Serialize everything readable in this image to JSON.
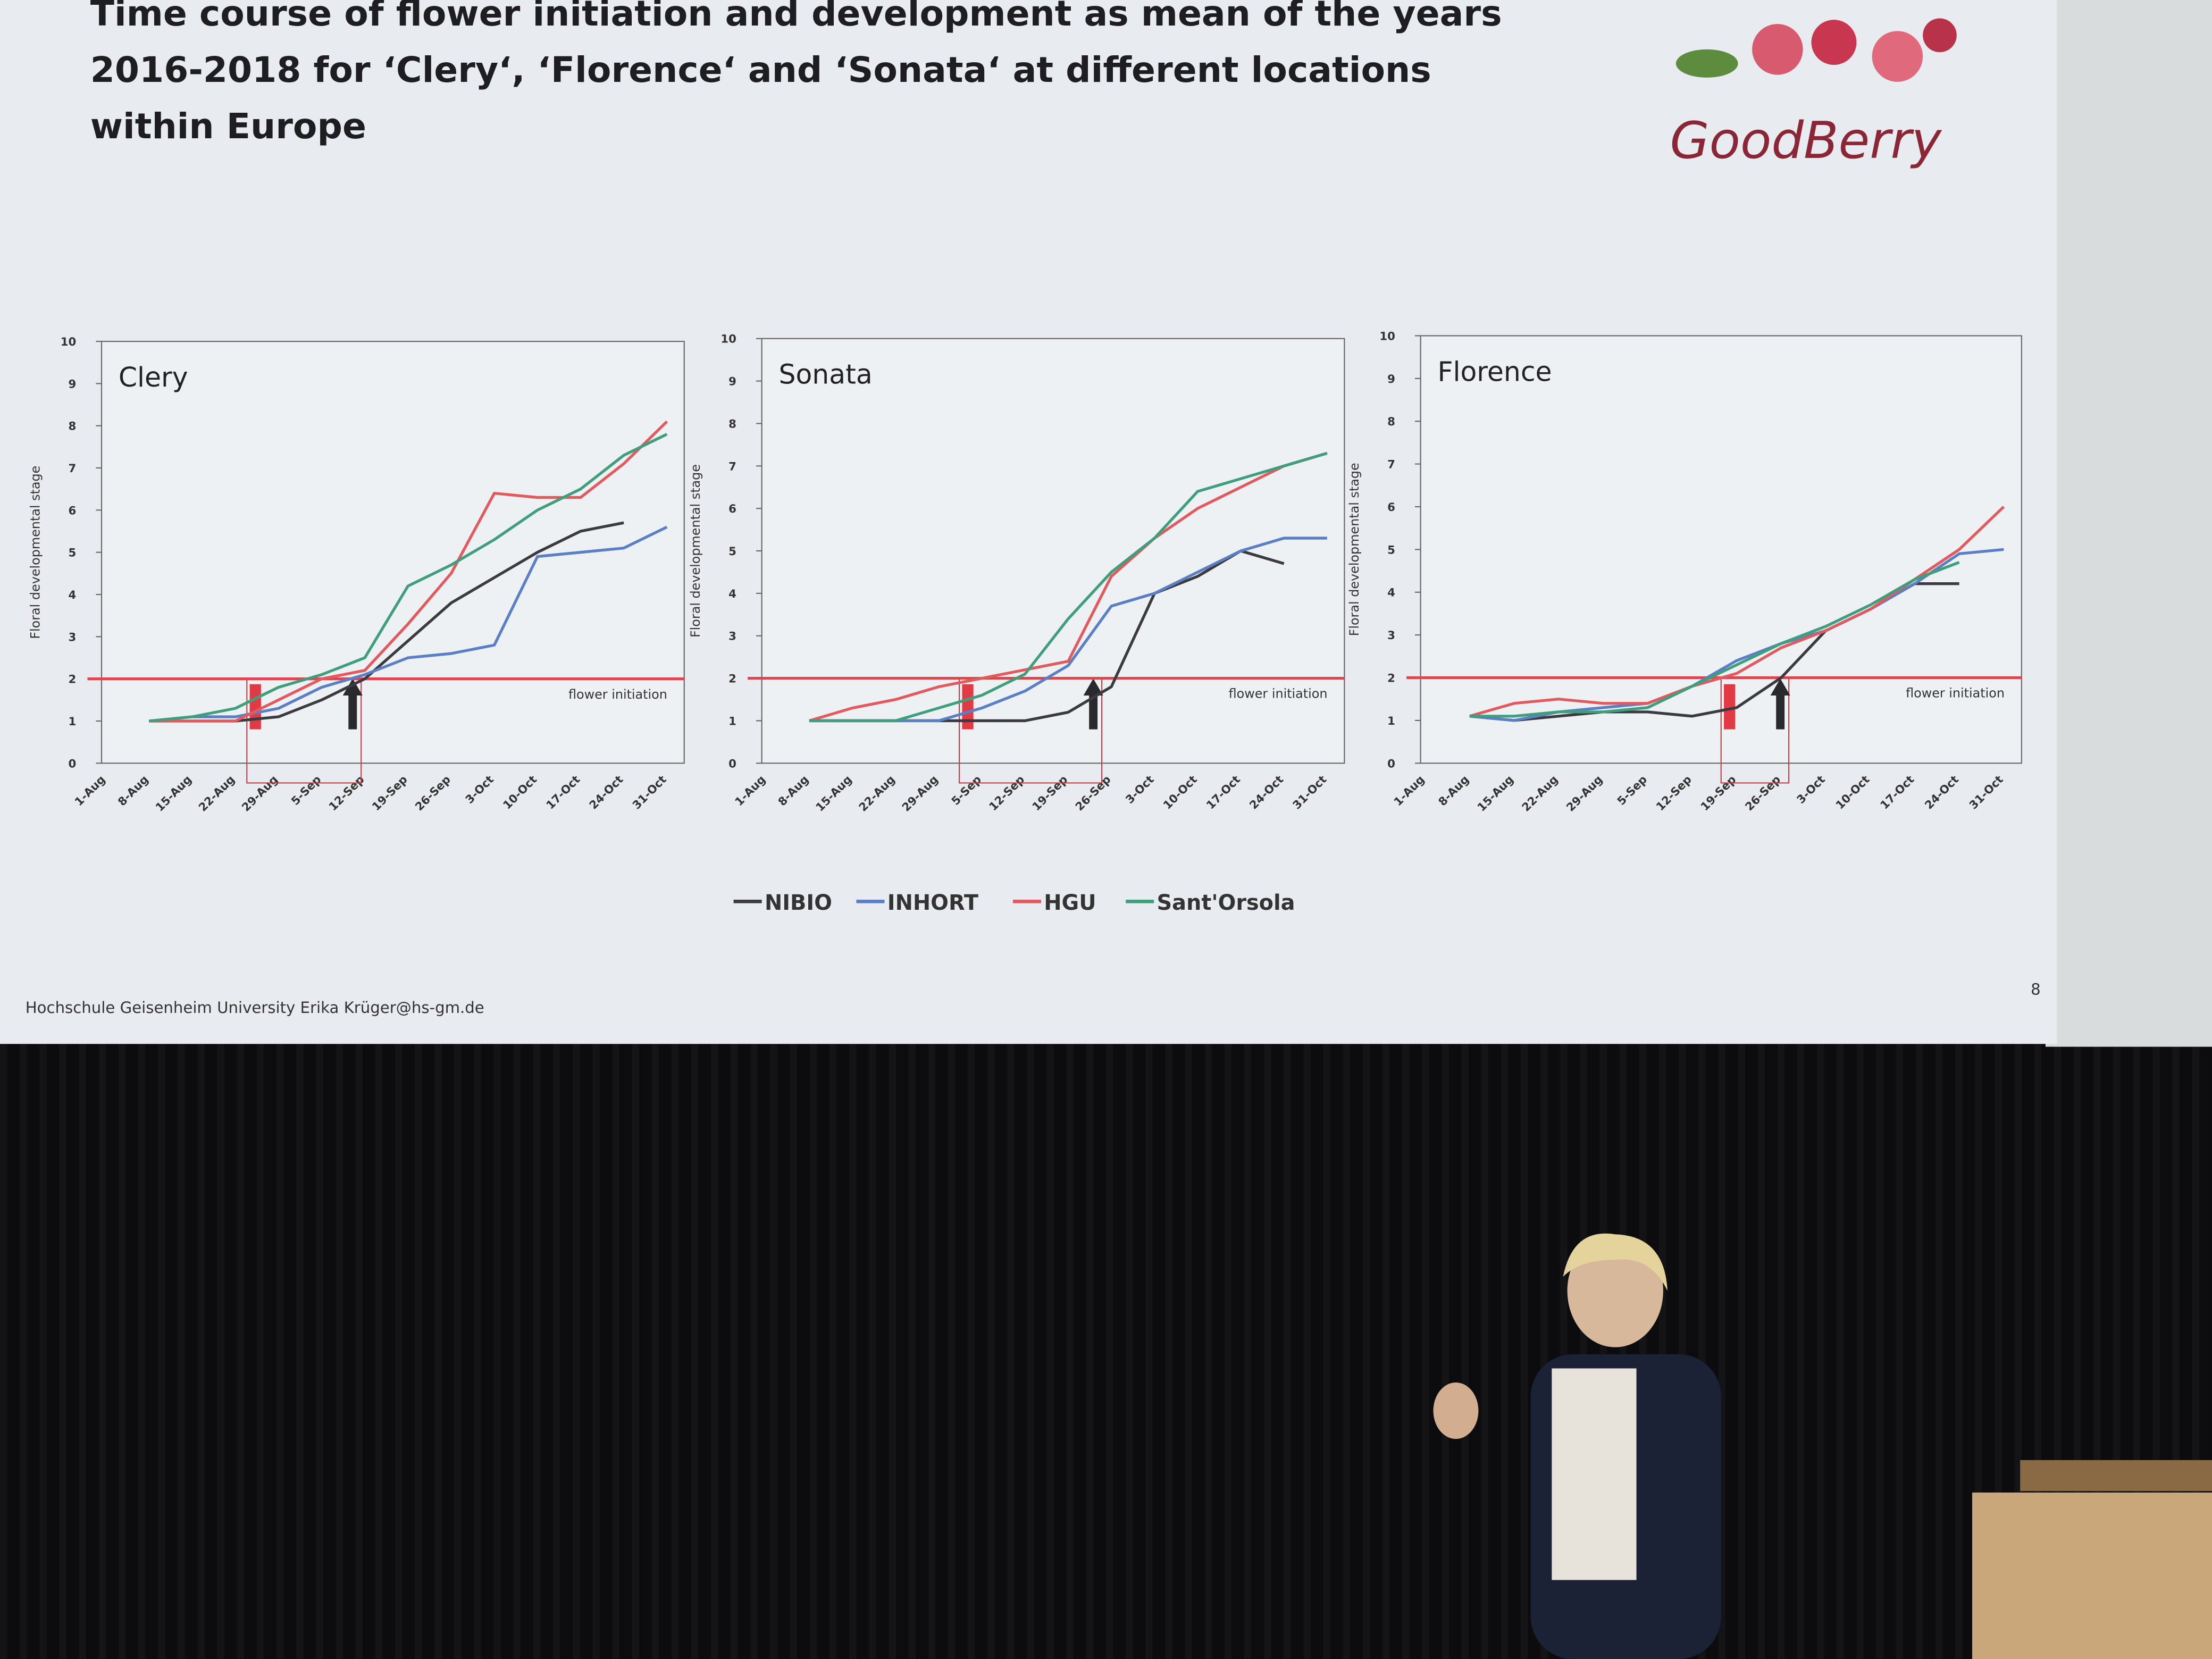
{
  "slide": {
    "title": [
      "Time course of flower initiation and development as mean of the years",
      "2016-2018 for ‘Clery‘, ‘Florence‘ and ‘Sonata‘ at different locations",
      "within Europe"
    ],
    "logo": "GoodBerry",
    "footer": "Hochschule Geisenheim University Erika Krüger@hs-gm.de",
    "page_number": "8"
  },
  "chart_data": [
    {
      "type": "line",
      "title": "Clery",
      "y_label": "Floral developmental stage",
      "categories": [
        "1-Aug",
        "8-Aug",
        "15-Aug",
        "22-Aug",
        "29-Aug",
        "5-Sep",
        "12-Sep",
        "19-Sep",
        "26-Sep",
        "3-Oct",
        "10-Oct",
        "17-Oct",
        "24-Oct",
        "31-Oct"
      ],
      "ylim": [
        0,
        10
      ],
      "yticks": [
        0,
        1,
        2,
        3,
        4,
        5,
        6,
        7,
        8,
        9,
        10
      ],
      "grid": false,
      "reference_line": {
        "value": 2,
        "label": "flower initiation",
        "color": "#e0444c"
      },
      "series": [
        {
          "name": "NIBIO",
          "color": "#3a3a40",
          "values": [
            null,
            1,
            1,
            1,
            1.1,
            1.5,
            2,
            2.9,
            3.8,
            4.4,
            5,
            5.5,
            5.7,
            null
          ]
        },
        {
          "name": "INHORT",
          "color": "#5a7fc4",
          "values": [
            null,
            1,
            1.1,
            1.1,
            1.3,
            1.8,
            2.1,
            2.5,
            2.6,
            2.8,
            4.9,
            5.0,
            5.1,
            5.6
          ]
        },
        {
          "name": "HGU",
          "color": "#e25a5e",
          "values": [
            null,
            1,
            1,
            1,
            1.5,
            2,
            2.2,
            3.3,
            4.5,
            6.4,
            6.3,
            6.3,
            7.1,
            8.1
          ]
        },
        {
          "name": "Sant'Orsola",
          "color": "#3f9f7c",
          "values": [
            null,
            1,
            1.1,
            1.3,
            1.8,
            2.1,
            2.5,
            4.2,
            4.7,
            5.3,
            6.0,
            6.5,
            7.3,
            7.8
          ]
        }
      ]
    },
    {
      "type": "line",
      "title": "Sonata",
      "y_label": "Floral developmental stage",
      "categories": [
        "1-Aug",
        "8-Aug",
        "15-Aug",
        "22-Aug",
        "29-Aug",
        "5-Sep",
        "12-Sep",
        "19-Sep",
        "26-Sep",
        "3-Oct",
        "10-Oct",
        "17-Oct",
        "24-Oct",
        "31-Oct"
      ],
      "ylim": [
        0,
        10
      ],
      "yticks": [
        0,
        1,
        2,
        3,
        4,
        5,
        6,
        7,
        8,
        9,
        10
      ],
      "grid": false,
      "reference_line": {
        "value": 2,
        "label": "flower initiation",
        "color": "#e0444c"
      },
      "series": [
        {
          "name": "NIBIO",
          "color": "#3a3a40",
          "values": [
            null,
            1,
            1,
            1,
            1,
            1,
            1,
            1.2,
            1.8,
            4.0,
            4.4,
            5.0,
            4.7,
            null
          ]
        },
        {
          "name": "INHORT",
          "color": "#5a7fc4",
          "values": [
            null,
            1,
            1,
            1,
            1,
            1.3,
            1.7,
            2.3,
            3.7,
            4.0,
            4.5,
            5.0,
            5.3,
            5.3
          ]
        },
        {
          "name": "HGU",
          "color": "#e25a5e",
          "values": [
            null,
            1,
            1.3,
            1.5,
            1.8,
            2.0,
            2.2,
            2.4,
            4.4,
            5.3,
            6.0,
            6.5,
            7.0,
            7.3
          ]
        },
        {
          "name": "Sant'Orsola",
          "color": "#3f9f7c",
          "values": [
            null,
            1,
            1,
            1,
            1.3,
            1.6,
            2.1,
            3.4,
            4.5,
            5.3,
            6.4,
            6.7,
            7.0,
            7.3
          ]
        }
      ]
    },
    {
      "type": "line",
      "title": "Florence",
      "y_label": "Floral developmental stage",
      "categories": [
        "1-Aug",
        "8-Aug",
        "15-Aug",
        "22-Aug",
        "29-Aug",
        "5-Sep",
        "12-Sep",
        "19-Sep",
        "26-Sep",
        "3-Oct",
        "10-Oct",
        "17-Oct",
        "24-Oct",
        "31-Oct"
      ],
      "ylim": [
        0,
        10
      ],
      "yticks": [
        0,
        1,
        2,
        3,
        4,
        5,
        6,
        7,
        8,
        9,
        10
      ],
      "grid": false,
      "reference_line": {
        "value": 2,
        "label": "flower initiation",
        "color": "#e0444c"
      },
      "series": [
        {
          "name": "NIBIO",
          "color": "#3a3a40",
          "values": [
            null,
            1.1,
            1.0,
            1.1,
            1.2,
            1.2,
            1.1,
            1.3,
            2.0,
            3.1,
            3.6,
            4.2,
            4.2,
            null
          ]
        },
        {
          "name": "INHORT",
          "color": "#5a7fc4",
          "values": [
            null,
            1.1,
            1.0,
            1.2,
            1.3,
            1.4,
            1.8,
            2.4,
            2.8,
            3.1,
            3.6,
            4.2,
            4.9,
            5.0
          ]
        },
        {
          "name": "HGU",
          "color": "#e25a5e",
          "values": [
            null,
            1.1,
            1.4,
            1.5,
            1.4,
            1.4,
            1.8,
            2.1,
            2.7,
            3.1,
            3.6,
            4.3,
            5.0,
            6.0
          ]
        },
        {
          "name": "Sant'Orsola",
          "color": "#3f9f7c",
          "values": [
            null,
            1.1,
            1.1,
            1.2,
            1.2,
            1.3,
            1.8,
            2.3,
            2.8,
            3.2,
            3.7,
            4.3,
            4.7,
            null
          ]
        }
      ]
    }
  ]
}
